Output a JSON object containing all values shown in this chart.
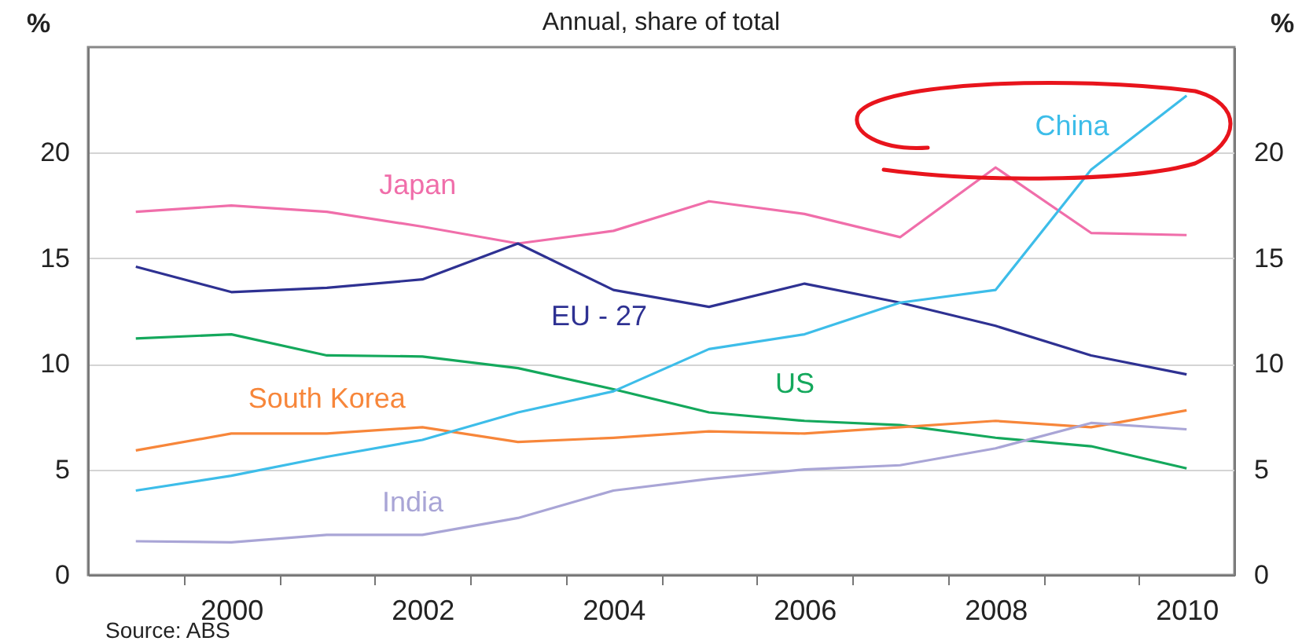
{
  "chart_data": {
    "type": "line",
    "title": "Annual, share of total",
    "ylabel": "%",
    "y2label": "%",
    "x": [
      1999,
      2000,
      2001,
      2002,
      2003,
      2004,
      2005,
      2006,
      2007,
      2008,
      2009,
      2010
    ],
    "xlim": [
      1998.5,
      2010.5
    ],
    "xticks": [
      {
        "value": 1999.5,
        "label": null
      },
      2000,
      {
        "value": 2000.5,
        "label": null
      },
      {
        "value": 2001.5,
        "label": null
      },
      2002,
      {
        "value": 2002.5,
        "label": null
      },
      {
        "value": 2003.5,
        "label": null
      },
      2004,
      {
        "value": 2004.5,
        "label": null
      },
      {
        "value": 2005.5,
        "label": null
      },
      2006,
      {
        "value": 2006.5,
        "label": null
      },
      {
        "value": 2007.5,
        "label": null
      },
      2008,
      {
        "value": 2008.5,
        "label": null
      },
      {
        "value": 2009.5,
        "label": null
      },
      2010
    ],
    "ylim": [
      0,
      25
    ],
    "yticks": [
      0,
      5,
      10,
      15,
      20
    ],
    "y2lim": [
      0,
      25
    ],
    "y2ticks": [
      0,
      5,
      10,
      15,
      20
    ],
    "grid": "y",
    "legend": false,
    "series": [
      {
        "name": "Japan",
        "color": "#f06eaa",
        "values": [
          17.2,
          17.5,
          17.2,
          16.5,
          15.7,
          16.3,
          17.7,
          17.1,
          16.0,
          19.3,
          16.2,
          16.1
        ]
      },
      {
        "name": "EU - 27",
        "color": "#2e3192",
        "values": [
          14.6,
          13.4,
          13.6,
          14.0,
          15.7,
          13.5,
          12.7,
          13.8,
          12.9,
          11.8,
          10.4,
          9.5
        ]
      },
      {
        "name": "US",
        "color": "#14a85c",
        "values": [
          11.2,
          11.4,
          10.4,
          10.35,
          9.8,
          8.8,
          7.7,
          7.3,
          7.1,
          6.5,
          6.1,
          5.05
        ]
      },
      {
        "name": "South Korea",
        "color": "#f7863a",
        "values": [
          5.9,
          6.7,
          6.7,
          7.0,
          6.3,
          6.5,
          6.8,
          6.7,
          7.0,
          7.3,
          7.0,
          7.8
        ]
      },
      {
        "name": "China",
        "color": "#3dbde9",
        "values": [
          4.0,
          4.7,
          5.6,
          6.4,
          7.7,
          8.7,
          10.7,
          11.4,
          12.9,
          13.5,
          19.2,
          22.7
        ]
      },
      {
        "name": "India",
        "color": "#a9a5d6",
        "values": [
          1.6,
          1.55,
          1.9,
          1.9,
          2.7,
          4.0,
          4.55,
          5.0,
          5.2,
          6.0,
          7.2,
          6.9
        ]
      }
    ],
    "annotations": [
      "Source: ABS"
    ]
  }
}
